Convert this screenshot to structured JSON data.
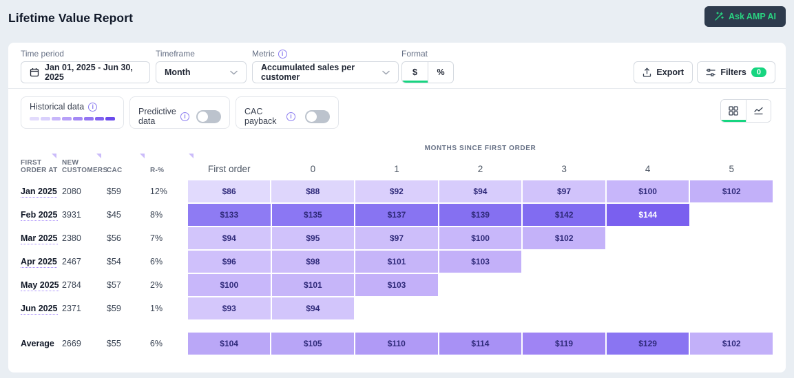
{
  "page": {
    "title": "Lifetime Value Report"
  },
  "header": {
    "ask_ai_label": "Ask AMP AI"
  },
  "filters": {
    "time_period": {
      "label": "Time period",
      "value": "Jan 01, 2025 - Jun 30, 2025"
    },
    "timeframe": {
      "label": "Timeframe",
      "value": "Month"
    },
    "metric": {
      "label": "Metric",
      "value": "Accumulated sales per customer"
    },
    "format": {
      "label": "Format",
      "options": [
        "$",
        "%"
      ],
      "selected": "$"
    },
    "export_label": "Export",
    "filters_label": "Filters",
    "filters_count": "0"
  },
  "controls": {
    "historical": {
      "label": "Historical data",
      "segments": [
        "#e2dbfc",
        "#d9d0fc",
        "#c7b6fa",
        "#b7a0f8",
        "#a489f5",
        "#9476f3",
        "#8263f0",
        "#6a4aec"
      ]
    },
    "predictive": {
      "label": "Predictive data",
      "enabled": false
    },
    "cac_payback": {
      "label": "CAC payback",
      "enabled": false
    }
  },
  "table": {
    "months_header": "MONTHS SINCE FIRST ORDER",
    "left_headers": [
      {
        "l1": "FIRST",
        "l2": "ORDER AT"
      },
      {
        "l1": "NEW",
        "l2": "CUSTOMERS"
      },
      {
        "l1": "",
        "l2": "CAC"
      },
      {
        "l1": "",
        "l2": "R-%"
      }
    ],
    "column_headers": [
      "First order",
      "0",
      "1",
      "2",
      "3",
      "4",
      "5"
    ],
    "rows": [
      {
        "month": "Jan 2025",
        "customers": "2080",
        "cac": "$59",
        "retention": "12%",
        "cells": [
          {
            "v": "$86",
            "c": "#e1dafd"
          },
          {
            "v": "$88",
            "c": "#ded6fc"
          },
          {
            "v": "$92",
            "c": "#dacffc"
          },
          {
            "v": "$94",
            "c": "#d7ccfc"
          },
          {
            "v": "$97",
            "c": "#d1c3fb"
          },
          {
            "v": "$100",
            "c": "#c7b6fa"
          },
          {
            "v": "$102",
            "c": "#c2b0f9"
          }
        ]
      },
      {
        "month": "Feb 2025",
        "customers": "3931",
        "cac": "$45",
        "retention": "8%",
        "cells": [
          {
            "v": "$133",
            "c": "#8e7bf3"
          },
          {
            "v": "$135",
            "c": "#8b77f3"
          },
          {
            "v": "$137",
            "c": "#8874f2"
          },
          {
            "v": "$139",
            "c": "#8570f1"
          },
          {
            "v": "$142",
            "c": "#816cf1"
          },
          {
            "v": "$144",
            "c": "#7a60ef",
            "t": "#ffffff"
          }
        ]
      },
      {
        "month": "Mar 2025",
        "customers": "2380",
        "cac": "$56",
        "retention": "7%",
        "cells": [
          {
            "v": "$94",
            "c": "#d2c5fb"
          },
          {
            "v": "$95",
            "c": "#d0c2fb"
          },
          {
            "v": "$97",
            "c": "#cdbefa"
          },
          {
            "v": "$100",
            "c": "#c8b7fa"
          },
          {
            "v": "$102",
            "c": "#c4b2f9"
          }
        ]
      },
      {
        "month": "Apr 2025",
        "customers": "2467",
        "cac": "$54",
        "retention": "6%",
        "cells": [
          {
            "v": "$96",
            "c": "#cfc0fb"
          },
          {
            "v": "$98",
            "c": "#ccbcfa"
          },
          {
            "v": "$101",
            "c": "#c6b5f9"
          },
          {
            "v": "$103",
            "c": "#c3b0f9"
          }
        ]
      },
      {
        "month": "May 2025",
        "customers": "2784",
        "cac": "$57",
        "retention": "2%",
        "cells": [
          {
            "v": "$100",
            "c": "#c8b7fa"
          },
          {
            "v": "$101",
            "c": "#c6b5f9"
          },
          {
            "v": "$103",
            "c": "#c3b0f9"
          }
        ]
      },
      {
        "month": "Jun 2025",
        "customers": "2371",
        "cac": "$59",
        "retention": "1%",
        "cells": [
          {
            "v": "$93",
            "c": "#d4c7fb"
          },
          {
            "v": "$94",
            "c": "#d2c5fb"
          }
        ]
      }
    ],
    "average": {
      "label": "Average",
      "customers": "2669",
      "cac": "$55",
      "retention": "6%",
      "cells": [
        {
          "v": "$104",
          "c": "#baa7f7"
        },
        {
          "v": "$105",
          "c": "#b8a5f7"
        },
        {
          "v": "$110",
          "c": "#b09af6"
        },
        {
          "v": "$114",
          "c": "#a891f5"
        },
        {
          "v": "$119",
          "c": "#9f84f4"
        },
        {
          "v": "$129",
          "c": "#8a75f2"
        },
        {
          "v": "$102",
          "c": "#c2b0f9"
        }
      ]
    }
  }
}
